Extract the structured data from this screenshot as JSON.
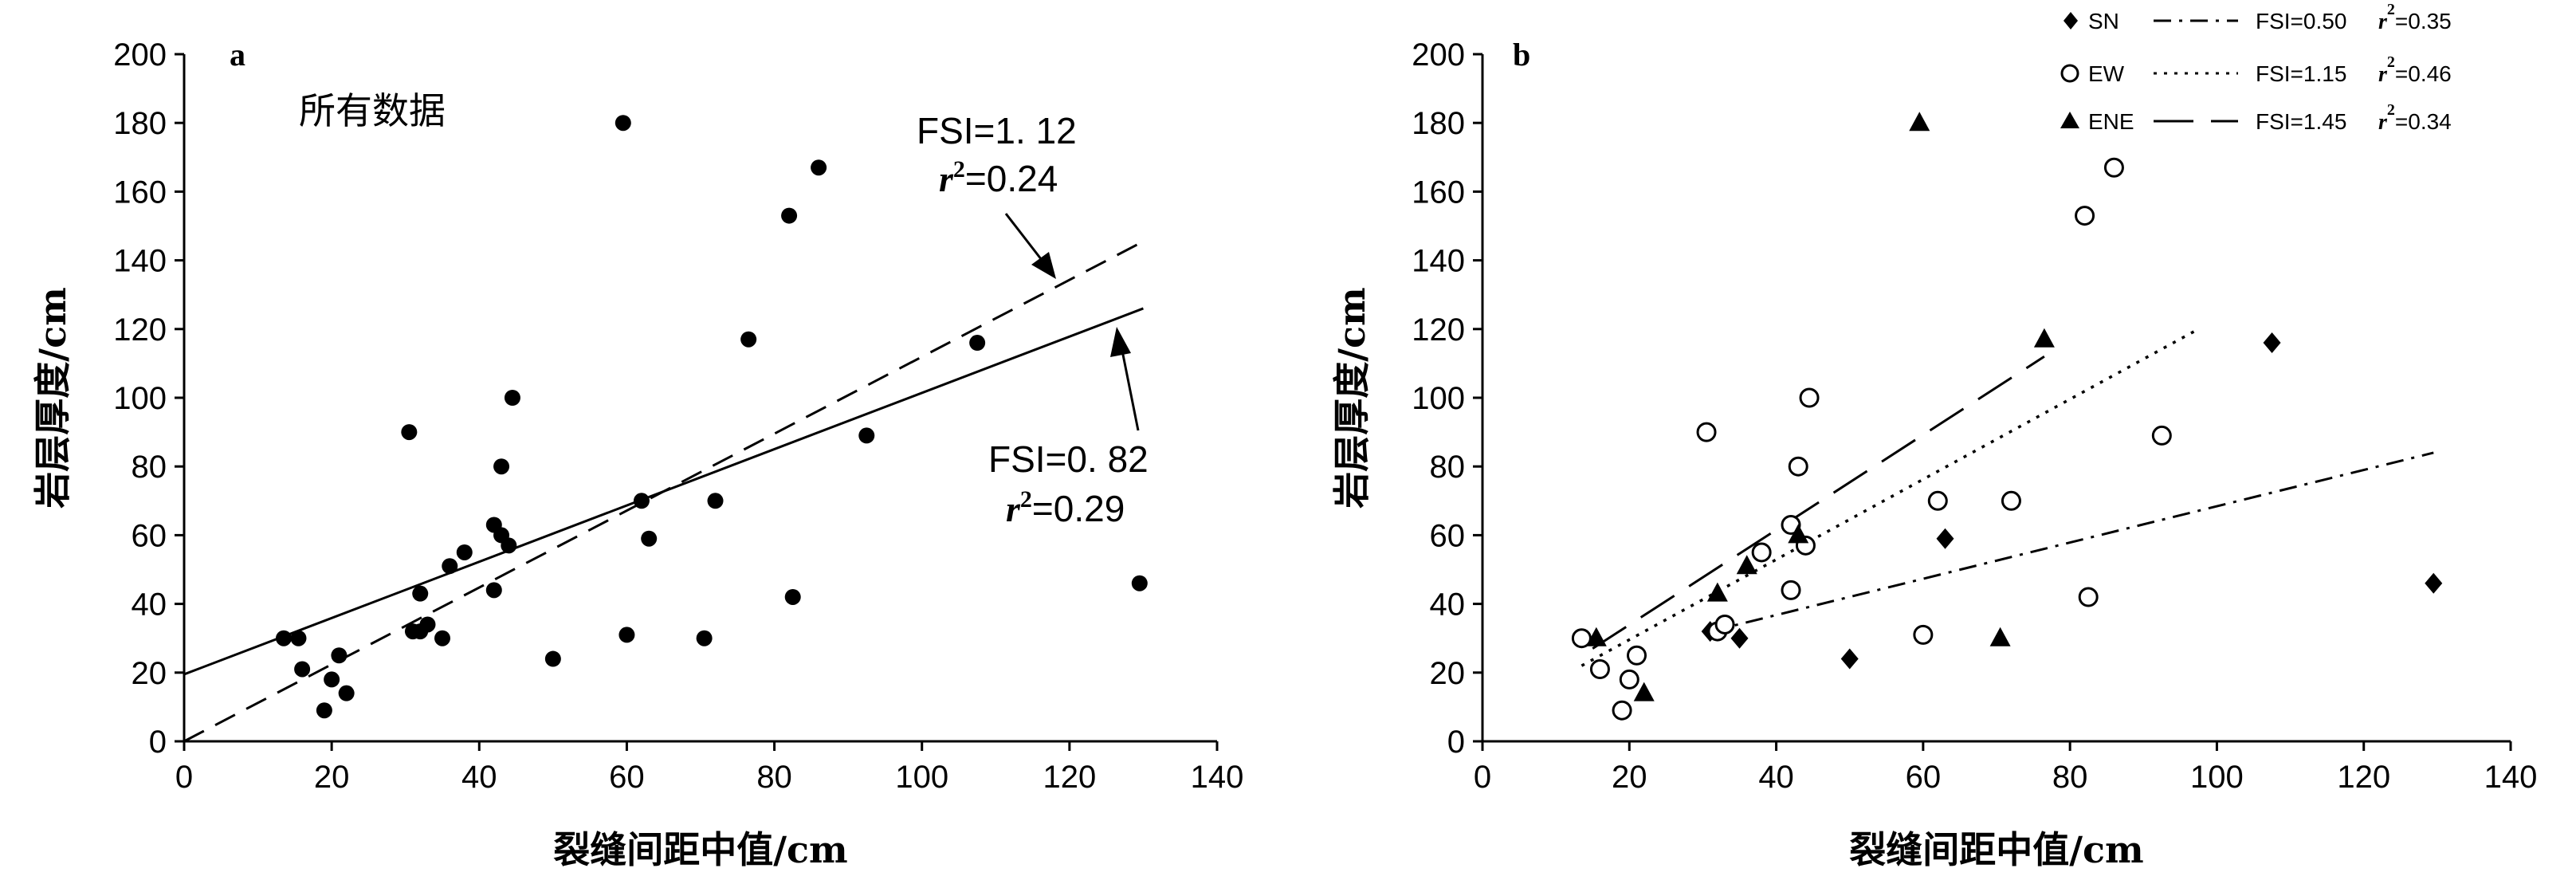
{
  "chart_data": [
    {
      "type": "scatter",
      "panel": "a",
      "subtitle": "所有数据",
      "xlabel": "裂缝间距中值/cm",
      "ylabel": "岩层厚度/cm",
      "xlim": [
        0,
        140
      ],
      "ylim": [
        0,
        200
      ],
      "xticks": [
        0,
        20,
        40,
        60,
        80,
        100,
        120,
        140
      ],
      "yticks": [
        0,
        20,
        40,
        60,
        80,
        100,
        120,
        140,
        160,
        180,
        200
      ],
      "grid": false,
      "series": [
        {
          "marker": "filled-circle",
          "points": [
            [
              13.5,
              30
            ],
            [
              15.5,
              30
            ],
            [
              16,
              21
            ],
            [
              19,
              9
            ],
            [
              20,
              18
            ],
            [
              21,
              25
            ],
            [
              22,
              14
            ],
            [
              30.5,
              90
            ],
            [
              31,
              32
            ],
            [
              32,
              32
            ],
            [
              32,
              43
            ],
            [
              33,
              34
            ],
            [
              35,
              30
            ],
            [
              36,
              51
            ],
            [
              38,
              55
            ],
            [
              42,
              44
            ],
            [
              42,
              63
            ],
            [
              43,
              80
            ],
            [
              43,
              60
            ],
            [
              44,
              57
            ],
            [
              44.5,
              100
            ],
            [
              50,
              24
            ],
            [
              59.5,
              180
            ],
            [
              60,
              31
            ],
            [
              62,
              70
            ],
            [
              63,
              59
            ],
            [
              70.5,
              30
            ],
            [
              72,
              70
            ],
            [
              76.5,
              117
            ],
            [
              82,
              153
            ],
            [
              82.5,
              42
            ],
            [
              86,
              167
            ],
            [
              92.5,
              89
            ],
            [
              107.5,
              116
            ],
            [
              129.5,
              46
            ]
          ]
        }
      ],
      "fits": [
        {
          "style": "dashed",
          "x": [
            0,
            130
          ],
          "y": [
            0,
            145.5
          ],
          "fsi": "FSI=1. 12",
          "r2": "=0.24"
        },
        {
          "style": "solid",
          "x": [
            0,
            130
          ],
          "y": [
            19.5,
            126
          ],
          "fsi": "FSI=0. 82",
          "r2": "=0.29"
        }
      ]
    },
    {
      "type": "scatter",
      "panel": "b",
      "xlabel": "裂缝间距中值/cm",
      "ylabel": "岩层厚度/cm",
      "xlim": [
        0,
        140
      ],
      "ylim": [
        0,
        200
      ],
      "xticks": [
        0,
        20,
        40,
        60,
        80,
        100,
        120,
        140
      ],
      "yticks": [
        0,
        20,
        40,
        60,
        80,
        100,
        120,
        140,
        160,
        180,
        200
      ],
      "grid": false,
      "legend_position": "top-right",
      "series": [
        {
          "name": "SN",
          "marker": "diamond",
          "fit": {
            "style": "dashdot",
            "x": [
              31,
              129.5
            ],
            "y": [
              32,
              84
            ],
            "fsi": "FSI=0.50",
            "r2": "=0.35"
          },
          "points": [
            [
              31,
              32
            ],
            [
              35,
              30
            ],
            [
              50,
              24
            ],
            [
              63,
              59
            ],
            [
              107.5,
              116
            ],
            [
              129.5,
              46
            ]
          ]
        },
        {
          "name": "EW",
          "marker": "open-circle",
          "fit": {
            "style": "dotted",
            "x": [
              13.5,
              97.5
            ],
            "y": [
              22,
              120
            ],
            "fsi": "FSI=1.15",
            "r2": "=0.46"
          },
          "points": [
            [
              13.5,
              30
            ],
            [
              16,
              21
            ],
            [
              19,
              9
            ],
            [
              20,
              18
            ],
            [
              21,
              25
            ],
            [
              30.5,
              90
            ],
            [
              32,
              32
            ],
            [
              33,
              34
            ],
            [
              38,
              55
            ],
            [
              42,
              44
            ],
            [
              42,
              63
            ],
            [
              43,
              80
            ],
            [
              44,
              57
            ],
            [
              44.5,
              100
            ],
            [
              60,
              31
            ],
            [
              62,
              70
            ],
            [
              72,
              70
            ],
            [
              82,
              153
            ],
            [
              82.5,
              42
            ],
            [
              86,
              167
            ],
            [
              92.5,
              89
            ]
          ]
        },
        {
          "name": "ENE",
          "marker": "filled-triangle",
          "fit": {
            "style": "long-dash",
            "x": [
              15,
              76.5
            ],
            "y": [
              27,
              112
            ],
            "fsi": "FSI=1.45",
            "r2": "=0.34"
          },
          "points": [
            [
              15.5,
              30
            ],
            [
              22,
              14
            ],
            [
              32,
              43
            ],
            [
              36,
              51
            ],
            [
              43,
              60
            ],
            [
              59.5,
              180
            ],
            [
              70.5,
              30
            ],
            [
              76.5,
              117
            ]
          ]
        }
      ]
    }
  ],
  "r2_symbol": "r",
  "r2_exponent": "2"
}
